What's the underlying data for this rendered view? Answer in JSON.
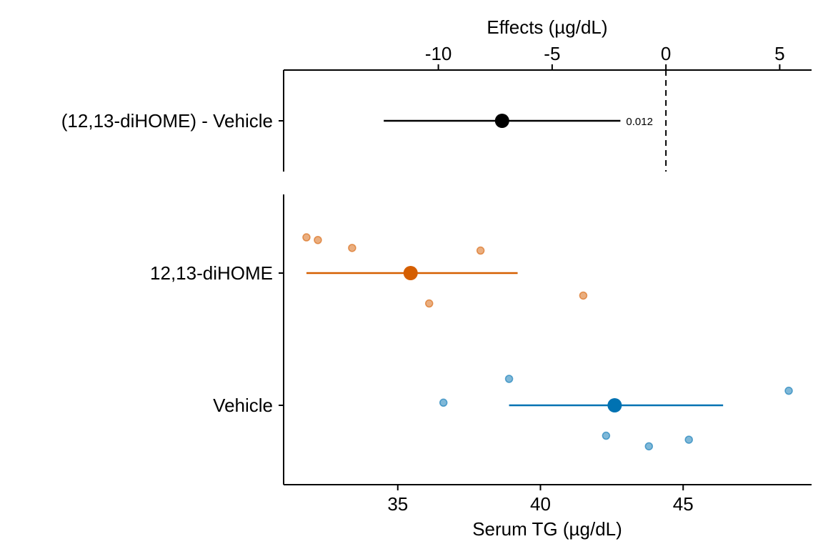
{
  "chart_data": [
    {
      "type": "scatter",
      "panel": "effects",
      "xlabel": "Effects (µg/dL)",
      "axis_position": "top",
      "xlim": [
        -16.8,
        6.4
      ],
      "xticks": [
        -10,
        -5,
        0,
        5
      ],
      "xtick_labels": [
        "-10",
        "-5",
        "0",
        "5"
      ],
      "reference_line": 0,
      "rows": [
        {
          "label": "(12,13-diHOME) - Vehicle",
          "estimate": -7.2,
          "ci": [
            -12.4,
            -2.0
          ],
          "p_label": "0.012",
          "color": "#000000"
        }
      ]
    },
    {
      "type": "scatter",
      "panel": "groups",
      "xlabel": "Serum TG (µg/dL)",
      "axis_position": "bottom",
      "xlim": [
        31.0,
        49.5
      ],
      "xticks": [
        35,
        40,
        45
      ],
      "xtick_labels": [
        "35",
        "40",
        "45"
      ],
      "rows": [
        {
          "label": "12,13-diHOME",
          "color": "#D55E00",
          "mean": 35.45,
          "ci": [
            31.8,
            39.2
          ],
          "points": [
            {
              "x": 31.8,
              "jitter": 0.27
            },
            {
              "x": 32.2,
              "jitter": 0.25
            },
            {
              "x": 33.4,
              "jitter": 0.19
            },
            {
              "x": 37.9,
              "jitter": 0.17
            },
            {
              "x": 41.5,
              "jitter": -0.17
            },
            {
              "x": 36.1,
              "jitter": -0.23
            }
          ]
        },
        {
          "label": "Vehicle",
          "color": "#0072B2",
          "mean": 42.6,
          "ci": [
            38.9,
            46.4
          ],
          "points": [
            {
              "x": 38.9,
              "jitter": 0.2
            },
            {
              "x": 36.6,
              "jitter": 0.02
            },
            {
              "x": 48.7,
              "jitter": 0.11
            },
            {
              "x": 42.3,
              "jitter": -0.23
            },
            {
              "x": 43.8,
              "jitter": -0.31
            },
            {
              "x": 45.2,
              "jitter": -0.26
            }
          ]
        }
      ]
    }
  ]
}
